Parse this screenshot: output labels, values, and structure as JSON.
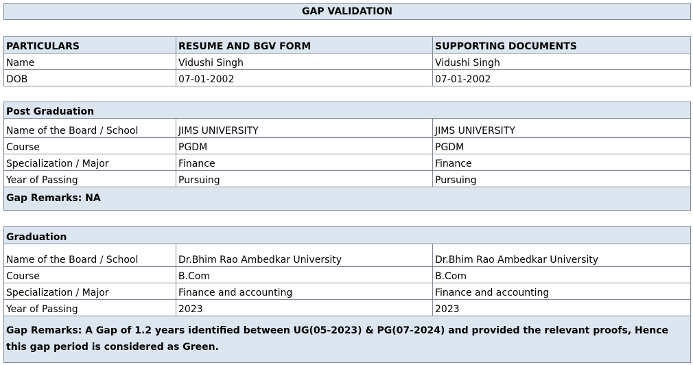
{
  "title": "GAP VALIDATION",
  "table": {
    "header": [
      "PARTICULARS",
      "RESUME AND BGV FORM",
      "SUPPORTING DOCUMENTS"
    ],
    "rows": [
      [
        "Name",
        "Vidushi Singh",
        "Vidushi Singh"
      ],
      [
        "DOB",
        "07-01-2002",
        "07-01-2002"
      ]
    ]
  },
  "sections": [
    {
      "heading": "Post Graduation",
      "rows": [
        [
          "Name of the Board / School",
          "JIMS UNIVERSITY",
          "JIMS UNIVERSITY"
        ],
        [
          "Course",
          "PGDM",
          "PGDM"
        ],
        [
          "Specialization / Major",
          "Finance",
          "Finance"
        ],
        [
          "Year of Passing",
          "Pursuing",
          "Pursuing"
        ]
      ],
      "remarks": "Gap Remarks: NA"
    },
    {
      "heading": "Graduation",
      "rows": [
        [
          "Name of the Board / School",
          "Dr.Bhim Rao Ambedkar University",
          "Dr.Bhim Rao Ambedkar University"
        ],
        [
          "Course",
          "B.Com",
          "B.Com"
        ],
        [
          "Specialization / Major",
          "Finance and accounting",
          "Finance and accounting"
        ],
        [
          "Year of Passing",
          "2023",
          "2023"
        ]
      ],
      "remarks": "Gap Remarks: A Gap of 1.2 years identified between UG(05-2023) & PG(07-2024) and provided the relevant proofs, Hence this gap period is considered as Green."
    }
  ]
}
